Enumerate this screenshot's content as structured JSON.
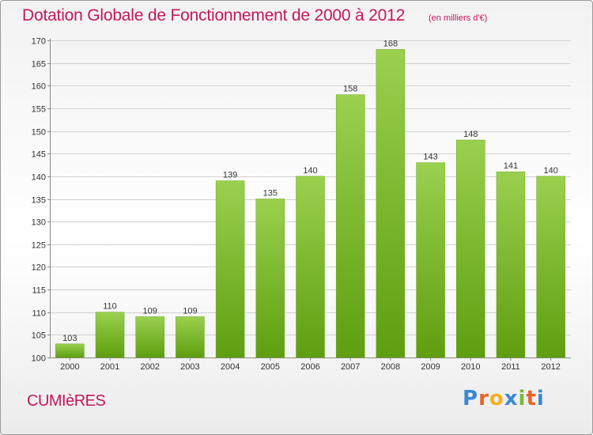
{
  "header": {
    "title": "Dotation Globale de Fonctionnement de 2000 à 2012",
    "unit": "(en milliers d'€)"
  },
  "footer": {
    "commune": "CUMIèRES",
    "logo_letters": [
      "P",
      "r",
      "o",
      "x",
      "i",
      "t",
      "i"
    ]
  },
  "colors": {
    "title": "#c2185b",
    "bar_top": "#9ad04e",
    "bar_bottom": "#5e9e10",
    "logo": [
      "#3a88d8",
      "#e8632a",
      "#f0b020",
      "#3a88d8",
      "#7ab83a",
      "#e8632a",
      "#3a88d8"
    ]
  },
  "chart_data": {
    "type": "bar",
    "categories": [
      "2000",
      "2001",
      "2002",
      "2003",
      "2004",
      "2005",
      "2006",
      "2007",
      "2008",
      "2009",
      "2010",
      "2011",
      "2012"
    ],
    "values": [
      103,
      110,
      109,
      109,
      139,
      135,
      140,
      158,
      168,
      143,
      148,
      141,
      140
    ],
    "ylim": [
      100,
      170
    ],
    "yticks": [
      100,
      105,
      110,
      115,
      120,
      125,
      130,
      135,
      140,
      145,
      150,
      155,
      160,
      165,
      170
    ],
    "grid": true
  }
}
